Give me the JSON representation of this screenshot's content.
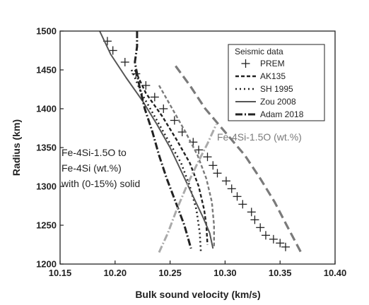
{
  "chart_data": {
    "type": "line",
    "xlabel": "Bulk sound velocity (km/s)",
    "ylabel": "Radius (km)",
    "xlim": [
      10.15,
      10.4
    ],
    "ylim": [
      1200,
      1500
    ],
    "x_ticks": [
      "10.15",
      "10.20",
      "10.25",
      "10.30",
      "10.35",
      "10.40"
    ],
    "y_ticks": [
      "1200",
      "1250",
      "1300",
      "1350",
      "1400",
      "1450",
      "1500"
    ],
    "grid": false,
    "legend": {
      "title": "Seismic data",
      "placement": "top-right",
      "entries": [
        "PREM",
        "AK135",
        "SH 1995",
        "Zou 2008",
        "Adam 2018"
      ]
    },
    "annotations": {
      "left_line1": "Fe-4Si-1.5O to",
      "left_line2": "Fe-4Si (wt.%)",
      "left_line3": "with (0-15%) solid",
      "right": "Fe-4Si-1.5O (wt.%)"
    },
    "colors": {
      "black_series": "#222222",
      "dark_gray": "#555555",
      "mid_gray": "#7a7a7a",
      "light_gray": "#aaaaaa"
    },
    "series": [
      {
        "name": "PREM",
        "style": "plus",
        "points": [
          [
            10.193,
            1487
          ],
          [
            10.198,
            1475
          ],
          [
            10.209,
            1460
          ],
          [
            10.219,
            1445
          ],
          [
            10.228,
            1430
          ],
          [
            10.236,
            1415
          ],
          [
            10.244,
            1400
          ],
          [
            10.254,
            1385
          ],
          [
            10.261,
            1370
          ],
          [
            10.271,
            1357
          ],
          [
            10.276,
            1347
          ],
          [
            10.284,
            1338
          ],
          [
            10.289,
            1327
          ],
          [
            10.293,
            1317
          ],
          [
            10.301,
            1307
          ],
          [
            10.306,
            1297
          ],
          [
            10.311,
            1287
          ],
          [
            10.316,
            1277
          ],
          [
            10.324,
            1267
          ],
          [
            10.327,
            1257
          ],
          [
            10.332,
            1247
          ],
          [
            10.337,
            1237
          ],
          [
            10.344,
            1232
          ],
          [
            10.35,
            1227
          ],
          [
            10.355,
            1222
          ]
        ]
      },
      {
        "name": "AK135",
        "style": "dashed",
        "color": "#222222",
        "points": [
          [
            10.218,
            1450
          ],
          [
            10.228,
            1420
          ],
          [
            10.243,
            1390
          ],
          [
            10.256,
            1360
          ],
          [
            10.268,
            1330
          ],
          [
            10.276,
            1300
          ],
          [
            10.281,
            1270
          ],
          [
            10.283,
            1250
          ],
          [
            10.284,
            1225
          ]
        ]
      },
      {
        "name": "SH 1995",
        "style": "dotted",
        "color": "#222222",
        "points": [
          [
            10.215,
            1450
          ],
          [
            10.224,
            1420
          ],
          [
            10.236,
            1390
          ],
          [
            10.248,
            1360
          ],
          [
            10.26,
            1330
          ],
          [
            10.268,
            1300
          ],
          [
            10.274,
            1270
          ],
          [
            10.277,
            1240
          ],
          [
            10.278,
            1215
          ]
        ]
      },
      {
        "name": "Zou 2008",
        "style": "solid",
        "color": "#555555",
        "points": [
          [
            10.186,
            1500
          ],
          [
            10.196,
            1470
          ],
          [
            10.21,
            1440
          ],
          [
            10.225,
            1410
          ],
          [
            10.238,
            1380
          ],
          [
            10.25,
            1350
          ],
          [
            10.26,
            1320
          ],
          [
            10.27,
            1290
          ],
          [
            10.28,
            1260
          ],
          [
            10.286,
            1240
          ],
          [
            10.289,
            1220
          ]
        ]
      },
      {
        "name": "Adam 2018",
        "style": "dash-dot",
        "color": "#222222",
        "points": [
          [
            10.22,
            1500
          ],
          [
            10.22,
            1480
          ],
          [
            10.218,
            1460
          ],
          [
            10.222,
            1430
          ],
          [
            10.227,
            1400
          ],
          [
            10.234,
            1370
          ],
          [
            10.24,
            1340
          ],
          [
            10.247,
            1310
          ],
          [
            10.255,
            1280
          ],
          [
            10.263,
            1250
          ],
          [
            10.269,
            1220
          ]
        ]
      },
      {
        "name": "Fe-4Si-1.5O to Fe-4Si (dashed, gray)",
        "style": "dashed",
        "color": "#7a7a7a",
        "points": [
          [
            10.24,
            1430
          ],
          [
            10.252,
            1400
          ],
          [
            10.264,
            1370
          ],
          [
            10.275,
            1340
          ],
          [
            10.283,
            1310
          ],
          [
            10.288,
            1280
          ],
          [
            10.29,
            1250
          ],
          [
            10.29,
            1222
          ]
        ]
      },
      {
        "name": "light gray dash-dot",
        "style": "dash-dot",
        "color": "#aaaaaa",
        "points": [
          [
            10.24,
            1215
          ],
          [
            10.248,
            1240
          ],
          [
            10.256,
            1270
          ],
          [
            10.265,
            1300
          ],
          [
            10.275,
            1330
          ],
          [
            10.284,
            1355
          ],
          [
            10.292,
            1380
          ]
        ]
      },
      {
        "name": "Fe-4Si-1.5O (wt.%)",
        "style": "long-dash",
        "color": "#7a7a7a",
        "points": [
          [
            10.255,
            1455
          ],
          [
            10.268,
            1430
          ],
          [
            10.282,
            1400
          ],
          [
            10.3,
            1370
          ],
          [
            10.318,
            1340
          ],
          [
            10.332,
            1310
          ],
          [
            10.345,
            1280
          ],
          [
            10.356,
            1250
          ],
          [
            10.369,
            1215
          ]
        ]
      }
    ]
  }
}
